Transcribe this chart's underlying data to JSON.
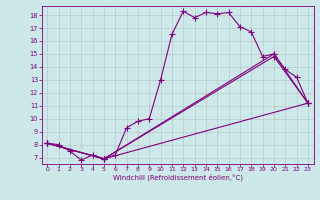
{
  "xlabel": "Windchill (Refroidissement éolien,°C)",
  "background_color": "#cce8e8",
  "line_color": "#800080",
  "grid_color": "#aaaaaa",
  "xlim": [
    -0.5,
    23.5
  ],
  "ylim": [
    6.5,
    18.7
  ],
  "xticks": [
    0,
    1,
    2,
    3,
    4,
    5,
    6,
    7,
    8,
    9,
    10,
    11,
    12,
    13,
    14,
    15,
    16,
    17,
    18,
    19,
    20,
    21,
    22,
    23
  ],
  "yticks": [
    7,
    8,
    9,
    10,
    11,
    12,
    13,
    14,
    15,
    16,
    17,
    18
  ],
  "curve1_x": [
    0,
    1,
    2,
    3,
    4,
    5,
    6,
    7,
    8,
    9,
    10,
    11,
    12,
    13,
    14,
    15,
    16,
    17,
    18,
    19,
    20,
    21,
    22,
    23
  ],
  "curve1_y": [
    8.1,
    8.0,
    7.5,
    6.8,
    7.2,
    6.9,
    7.2,
    9.3,
    9.8,
    10.0,
    13.0,
    16.5,
    18.3,
    17.8,
    18.2,
    18.1,
    18.2,
    17.1,
    16.7,
    14.8,
    15.0,
    13.8,
    13.2,
    11.2
  ],
  "curve2_x": [
    0,
    5,
    23
  ],
  "curve2_y": [
    8.1,
    6.9,
    11.2
  ],
  "curve3_x": [
    0,
    5,
    20,
    23
  ],
  "curve3_y": [
    8.1,
    6.9,
    14.8,
    11.2
  ],
  "curve4_x": [
    0,
    5,
    20,
    23
  ],
  "curve4_y": [
    8.1,
    6.9,
    15.0,
    11.2
  ],
  "marker": "+",
  "markersize": 4,
  "linewidth": 0.8,
  "tick_fontsize": 4.5,
  "xlabel_fontsize": 5.0
}
